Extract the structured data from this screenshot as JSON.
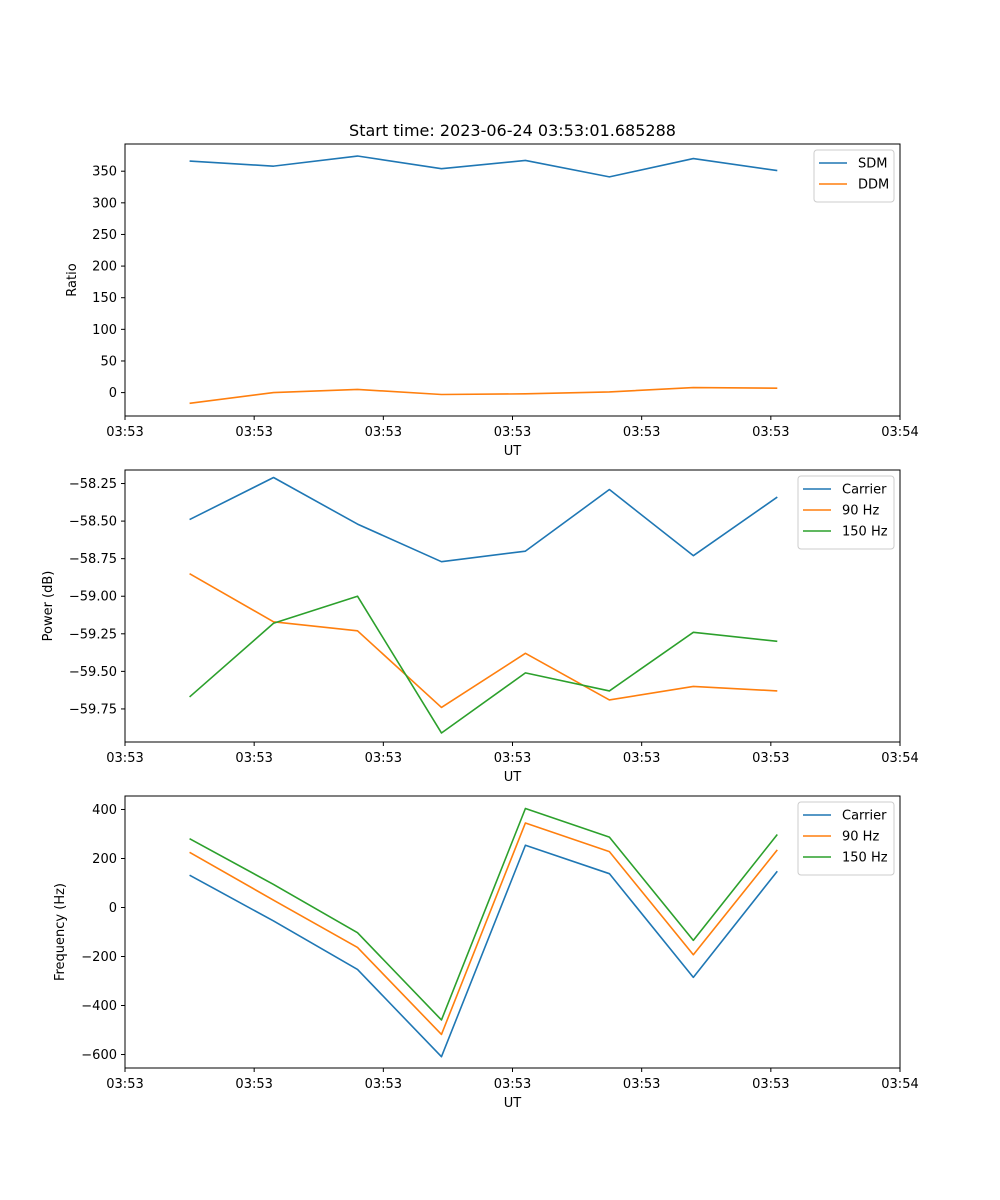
{
  "figure_title": "Start time: 2023-06-24 03:53:01.685288",
  "chart_data": [
    {
      "type": "line",
      "title": "Start time: 2023-06-24 03:53:01.685288",
      "xlabel": "UT",
      "ylabel": "Ratio",
      "x": [
        0.5,
        1.15,
        1.8,
        2.45,
        3.1,
        3.75,
        4.4,
        5.05
      ],
      "xlim": [
        0,
        6
      ],
      "xticks": [
        0,
        1,
        2,
        3,
        4,
        5,
        6
      ],
      "xticklabels": [
        "03:53",
        "03:53",
        "03:53",
        "03:53",
        "03:53",
        "03:53",
        "03:54"
      ],
      "ylim": [
        -37,
        393
      ],
      "yticks": [
        0,
        50,
        100,
        150,
        200,
        250,
        300,
        350
      ],
      "yticklabels": [
        "0",
        "50",
        "100",
        "150",
        "200",
        "250",
        "300",
        "350"
      ],
      "legend_position": "top-right",
      "series": [
        {
          "name": "SDM",
          "color": "#1f77b4",
          "values": [
            366,
            358,
            374,
            354,
            367,
            341,
            370,
            351
          ]
        },
        {
          "name": "DDM",
          "color": "#ff7f0e",
          "values": [
            -17,
            0,
            5,
            -3,
            -2,
            1,
            8,
            7
          ]
        }
      ]
    },
    {
      "type": "line",
      "xlabel": "UT",
      "ylabel": "Power (dB)",
      "x": [
        0.5,
        1.15,
        1.8,
        2.45,
        3.1,
        3.75,
        4.4,
        5.05
      ],
      "xlim": [
        0,
        6
      ],
      "xticks": [
        0,
        1,
        2,
        3,
        4,
        5,
        6
      ],
      "xticklabels": [
        "03:53",
        "03:53",
        "03:53",
        "03:53",
        "03:53",
        "03:53",
        "03:54"
      ],
      "ylim": [
        -59.97,
        -58.16
      ],
      "yticks": [
        -59.75,
        -59.5,
        -59.25,
        -59.0,
        -58.75,
        -58.5,
        -58.25
      ],
      "yticklabels": [
        "−59.75",
        "−59.50",
        "−59.25",
        "−59.00",
        "−58.75",
        "−58.50",
        "−58.25"
      ],
      "legend_position": "top-right",
      "series": [
        {
          "name": "Carrier",
          "color": "#1f77b4",
          "values": [
            -58.49,
            -58.21,
            -58.52,
            -58.77,
            -58.7,
            -58.29,
            -58.73,
            -58.34
          ]
        },
        {
          "name": "90 Hz",
          "color": "#ff7f0e",
          "values": [
            -58.85,
            -59.17,
            -59.23,
            -59.74,
            -59.38,
            -59.69,
            -59.6,
            -59.63
          ]
        },
        {
          "name": "150 Hz",
          "color": "#2ca02c",
          "values": [
            -59.67,
            -59.18,
            -59.0,
            -59.91,
            -59.51,
            -59.63,
            -59.24,
            -59.3
          ]
        }
      ]
    },
    {
      "type": "line",
      "xlabel": "UT",
      "ylabel": "Frequency (Hz)",
      "x": [
        0.5,
        1.15,
        1.8,
        2.45,
        3.1,
        3.75,
        4.4,
        5.05
      ],
      "xlim": [
        0,
        6
      ],
      "xticks": [
        0,
        1,
        2,
        3,
        4,
        5,
        6
      ],
      "xticklabels": [
        "03:53",
        "03:53",
        "03:53",
        "03:53",
        "03:53",
        "03:53",
        "03:54"
      ],
      "ylim": [
        -655,
        455
      ],
      "yticks": [
        -600,
        -400,
        -200,
        0,
        200,
        400
      ],
      "yticklabels": [
        "−600",
        "−400",
        "−200",
        "0",
        "200",
        "400"
      ],
      "legend_position": "top-right",
      "series": [
        {
          "name": "Carrier",
          "color": "#1f77b4",
          "values": [
            132,
            -55,
            -253,
            -609,
            254,
            138,
            -285,
            148
          ]
        },
        {
          "name": "90 Hz",
          "color": "#ff7f0e",
          "values": [
            225,
            30,
            -163,
            -518,
            345,
            228,
            -193,
            235
          ]
        },
        {
          "name": "150 Hz",
          "color": "#2ca02c",
          "values": [
            281,
            94,
            -103,
            -459,
            404,
            287,
            -134,
            298
          ]
        }
      ]
    }
  ]
}
